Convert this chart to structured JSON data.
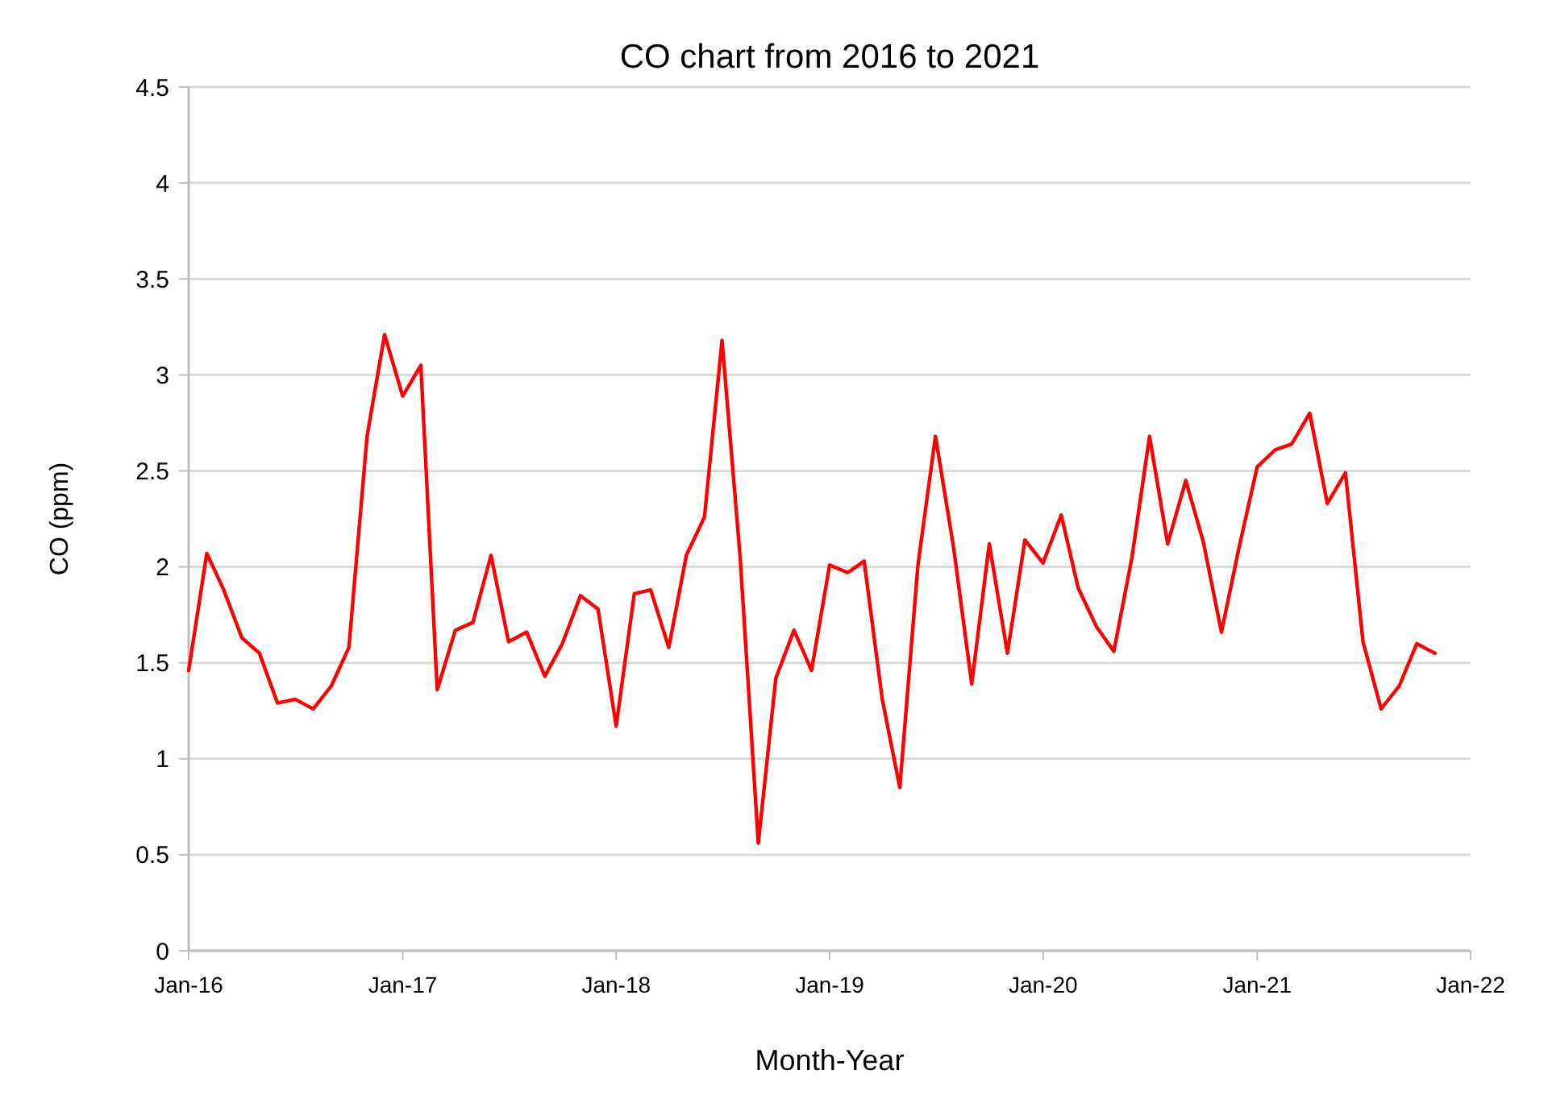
{
  "chart_data": {
    "type": "line",
    "title": "CO chart from 2016 to 2021",
    "xlabel": "Month-Year",
    "ylabel": "CO (ppm)",
    "x": [
      "2016-01",
      "2016-02",
      "2016-03",
      "2016-04",
      "2016-05",
      "2016-06",
      "2016-07",
      "2016-08",
      "2016-09",
      "2016-10",
      "2016-11",
      "2016-12",
      "2017-01",
      "2017-02",
      "2017-03",
      "2017-04",
      "2017-05",
      "2017-06",
      "2017-07",
      "2017-08",
      "2017-09",
      "2017-10",
      "2017-11",
      "2017-12",
      "2018-01",
      "2018-02",
      "2018-03",
      "2018-04",
      "2018-05",
      "2018-06",
      "2018-07",
      "2018-08",
      "2018-09",
      "2018-10",
      "2018-11",
      "2018-12",
      "2019-01",
      "2019-02",
      "2019-03",
      "2019-04",
      "2019-05",
      "2019-06",
      "2019-07",
      "2019-08",
      "2019-09",
      "2019-10",
      "2019-11",
      "2019-12",
      "2020-01",
      "2020-02",
      "2020-03",
      "2020-04",
      "2020-05",
      "2020-06",
      "2020-07",
      "2020-08",
      "2020-09",
      "2020-10",
      "2020-11",
      "2020-12",
      "2021-01",
      "2021-02",
      "2021-03",
      "2021-04",
      "2021-05",
      "2021-06",
      "2021-07",
      "2021-08",
      "2021-09",
      "2021-10",
      "2021-11"
    ],
    "series": [
      {
        "color": "#ff0000",
        "values": [
          1.46,
          2.07,
          1.88,
          1.63,
          1.55,
          1.29,
          1.31,
          1.26,
          1.38,
          1.58,
          2.68,
          3.21,
          2.89,
          3.05,
          1.36,
          1.67,
          1.71,
          2.06,
          1.61,
          1.66,
          1.43,
          1.6,
          1.85,
          1.78,
          1.17,
          1.86,
          1.88,
          1.58,
          2.06,
          2.26,
          3.18,
          2.05,
          0.56,
          1.42,
          1.67,
          1.46,
          2.01,
          1.97,
          2.03,
          1.31,
          0.85,
          2.01,
          2.68,
          2.1,
          1.39,
          2.12,
          1.55,
          2.14,
          2.02,
          2.27,
          1.89,
          1.69,
          1.56,
          2.05,
          2.68,
          2.12,
          2.45,
          2.13,
          1.66,
          2.1,
          2.52,
          2.61,
          2.64,
          2.8,
          2.33,
          2.49,
          1.61,
          1.26,
          1.38,
          1.6,
          1.55
        ]
      }
    ],
    "xlim": [
      "2016-01",
      "2022-01"
    ],
    "xticks": [
      {
        "value": "2016-01",
        "label": "Jan-16"
      },
      {
        "value": "2017-01",
        "label": "Jan-17"
      },
      {
        "value": "2018-01",
        "label": "Jan-18"
      },
      {
        "value": "2019-01",
        "label": "Jan-19"
      },
      {
        "value": "2020-01",
        "label": "Jan-20"
      },
      {
        "value": "2021-01",
        "label": "Jan-21"
      },
      {
        "value": "2022-01",
        "label": "Jan-22"
      }
    ],
    "ylim": [
      0,
      4.5
    ],
    "yticks": [
      0,
      0.5,
      1,
      1.5,
      2,
      2.5,
      3,
      3.5,
      4,
      4.5
    ],
    "grid": "y",
    "marker": "none",
    "line_style": "solid"
  }
}
